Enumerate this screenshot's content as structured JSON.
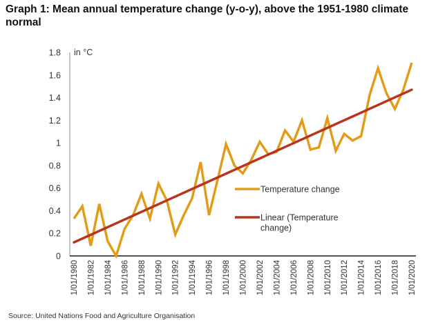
{
  "title": "Graph 1: Mean annual temperature change (y-o-y), above the 1951-1980 climate normal",
  "source": "Source: United Nations Food and Agriculture Organisation",
  "chart_data": {
    "type": "line",
    "title": "Graph 1: Mean annual temperature change (y-o-y), above the 1951-1980 climate normal",
    "xlabel": "",
    "ylabel": "in °C",
    "ylim": [
      0,
      1.8
    ],
    "yticks": [
      0,
      0.2,
      0.4,
      0.6,
      0.8,
      1,
      1.2,
      1.4,
      1.6,
      1.8
    ],
    "ytick_labels": [
      "0",
      "0.2",
      "0.4",
      "0.6",
      "0.8",
      "1",
      "1.2",
      "1.4",
      "1.6",
      "1.8"
    ],
    "x": [
      1980,
      1981,
      1982,
      1983,
      1984,
      1985,
      1986,
      1987,
      1988,
      1989,
      1990,
      1991,
      1992,
      1993,
      1994,
      1995,
      1996,
      1997,
      1998,
      1999,
      2000,
      2001,
      2002,
      2003,
      2004,
      2005,
      2006,
      2007,
      2008,
      2009,
      2010,
      2011,
      2012,
      2013,
      2014,
      2015,
      2016,
      2017,
      2018,
      2019,
      2020
    ],
    "xtick_labels": [
      "1/01/1980",
      "1/01/1982",
      "1/01/1984",
      "1/01/1986",
      "1/01/1988",
      "1/01/1990",
      "1/01/1992",
      "1/01/1994",
      "1/01/1996",
      "1/01/1998",
      "1/01/2000",
      "1/01/2002",
      "1/01/2004",
      "1/01/2006",
      "1/01/2008",
      "1/01/2010",
      "1/01/2012",
      "1/01/2014",
      "1/01/2016",
      "1/01/2018",
      "1/01/2020"
    ],
    "grid": false,
    "legend_position": "right-center",
    "series": [
      {
        "name": "Temperature change",
        "color": "#E39C1A",
        "values": [
          0.33,
          0.44,
          0.09,
          0.46,
          0.13,
          0.0,
          0.24,
          0.36,
          0.55,
          0.33,
          0.64,
          0.49,
          0.19,
          0.36,
          0.51,
          0.83,
          0.36,
          0.67,
          0.99,
          0.8,
          0.73,
          0.85,
          1.01,
          0.9,
          0.92,
          1.11,
          1.01,
          1.2,
          0.94,
          0.96,
          1.22,
          0.93,
          1.08,
          1.02,
          1.06,
          1.42,
          1.66,
          1.44,
          1.3,
          1.47,
          1.71
        ]
      },
      {
        "name": "Linear (Temperature change)",
        "color": "#B8341B",
        "type": "trendline",
        "start": [
          1980,
          0.12
        ],
        "end": [
          2020,
          1.47
        ]
      }
    ]
  }
}
